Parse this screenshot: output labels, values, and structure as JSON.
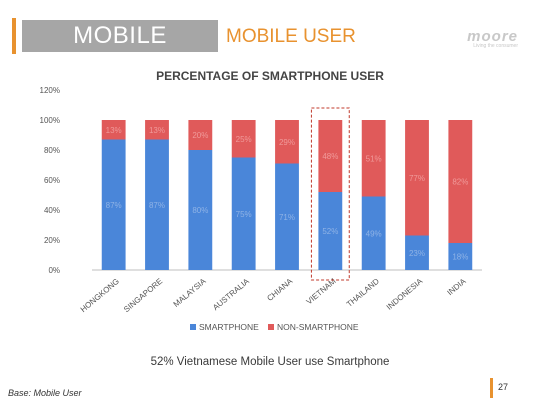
{
  "slide": {
    "section": "MOBILE",
    "subtitle": "MOBILE USER",
    "logo_text": "moore",
    "logo_tagline": "Living the consumer",
    "caption": "52% Vietnamese Mobile User use Smartphone",
    "footnote": "Base: Mobile User",
    "page_number": "27"
  },
  "colors": {
    "accent": "#e8922f",
    "smartphone": "#4a86d9",
    "non_smartphone": "#e05a5a",
    "highlight_box": "#c0392b"
  },
  "chart_data": {
    "type": "bar",
    "stacked": true,
    "title": "PERCENTAGE OF SMARTPHONE USER",
    "categories": [
      "HONGKONG",
      "SINGAPORE",
      "MALAYSIA",
      "AUSTRALIA",
      "CHIANA",
      "VIETNAM",
      "THAILAND",
      "INDONESIA",
      "INDIA"
    ],
    "series": [
      {
        "name": "SMARTPHONE",
        "values": [
          87,
          87,
          80,
          75,
          71,
          52,
          49,
          23,
          18
        ],
        "labels": [
          "87%",
          "87%",
          "80%",
          "75%",
          "71%",
          "52%",
          "49%",
          "23%",
          "18%"
        ]
      },
      {
        "name": "NON-SMARTPHONE",
        "values": [
          13,
          13,
          20,
          25,
          29,
          48,
          51,
          77,
          82
        ],
        "labels": [
          "13%",
          "13%",
          "20%",
          "25%",
          "29%",
          "48%",
          "51%",
          "77%",
          "82%"
        ]
      }
    ],
    "yticks": [
      "0%",
      "20%",
      "40%",
      "60%",
      "80%",
      "100%",
      "120%"
    ],
    "ylim": [
      0,
      120
    ],
    "highlight_category": "VIETNAM",
    "legend_position": "bottom",
    "grid": false
  }
}
